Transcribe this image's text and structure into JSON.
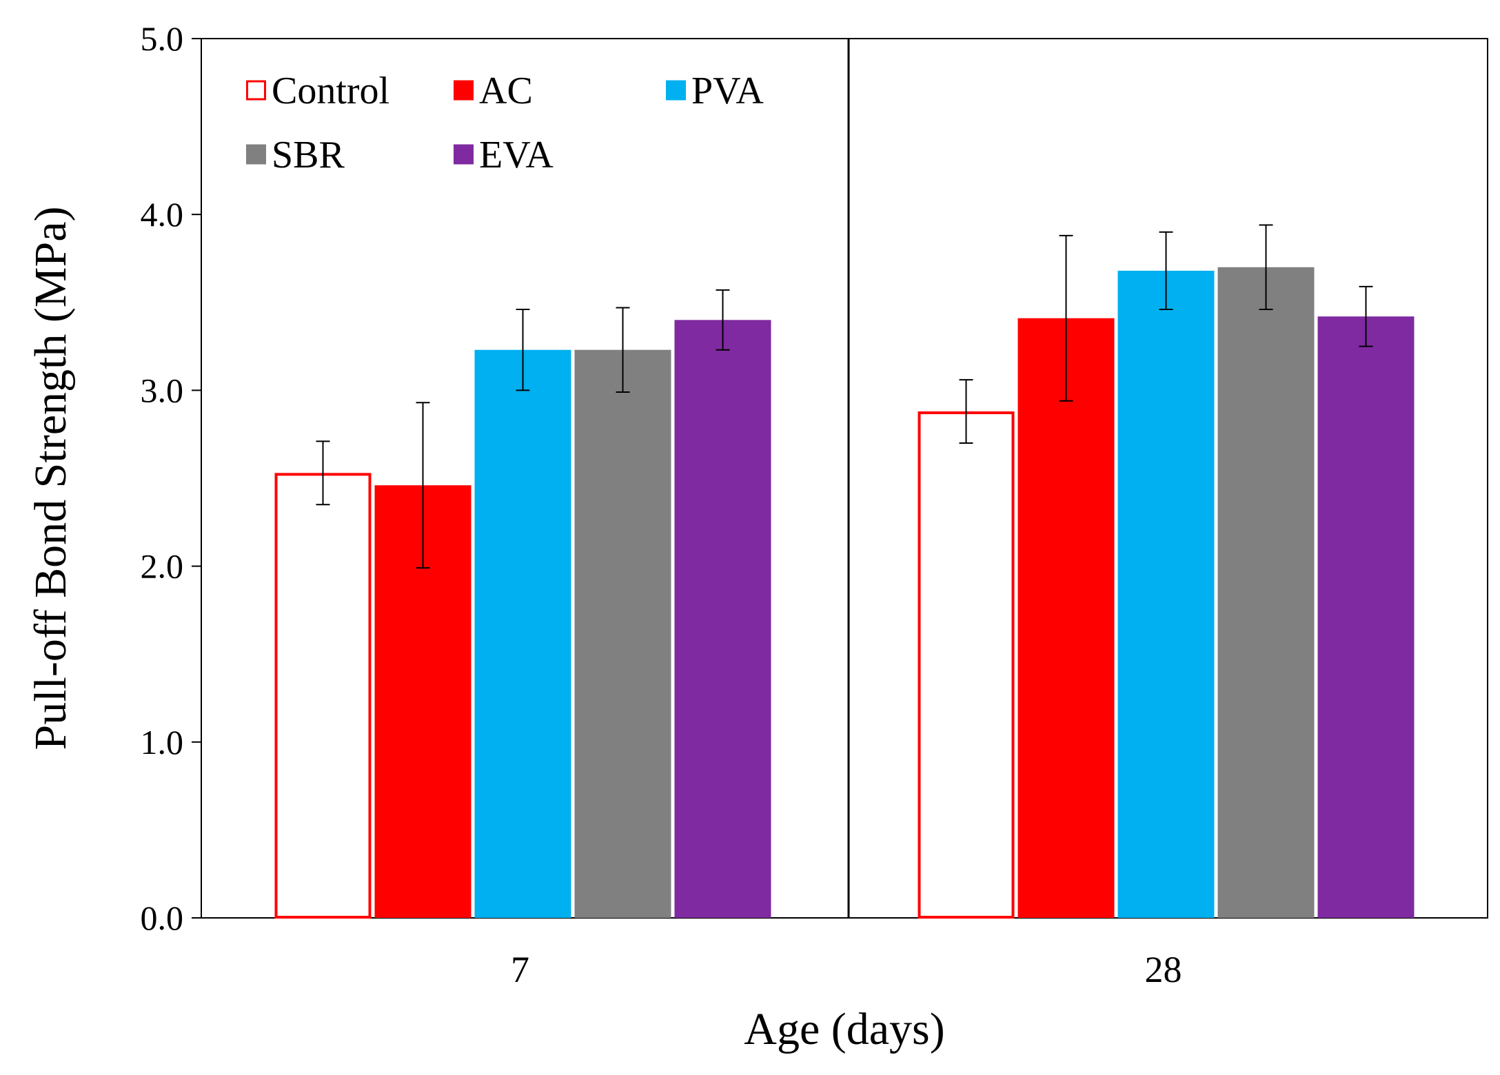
{
  "chart_data": {
    "type": "bar",
    "title": "",
    "xlabel": "Age (days)",
    "ylabel": "Pull-off Bond Strength (MPa)",
    "ylim": [
      0,
      5
    ],
    "yticks": [
      "0.0",
      "1.0",
      "2.0",
      "3.0",
      "4.0",
      "5.0"
    ],
    "ytick_values": [
      0,
      1,
      2,
      3,
      4,
      5
    ],
    "categories": [
      "7",
      "28"
    ],
    "grid": false,
    "legend_position": "top-left",
    "series": [
      {
        "name": "Control",
        "color": "#ff0000",
        "style": "outline",
        "values": [
          2.53,
          2.88
        ],
        "errors": [
          0.18,
          0.18
        ]
      },
      {
        "name": "AC",
        "color": "#ff0000",
        "style": "filled",
        "values": [
          2.46,
          3.41
        ],
        "errors": [
          0.47,
          0.47
        ]
      },
      {
        "name": "PVA",
        "color": "#00b0f0",
        "style": "filled",
        "values": [
          3.23,
          3.68
        ],
        "errors": [
          0.23,
          0.22
        ]
      },
      {
        "name": "SBR",
        "color": "#808080",
        "style": "filled",
        "values": [
          3.23,
          3.7
        ],
        "errors": [
          0.24,
          0.24
        ]
      },
      {
        "name": "EVA",
        "color": "#7f2aa0",
        "style": "filled",
        "values": [
          3.4,
          3.42
        ],
        "errors": [
          0.17,
          0.17
        ]
      }
    ]
  }
}
